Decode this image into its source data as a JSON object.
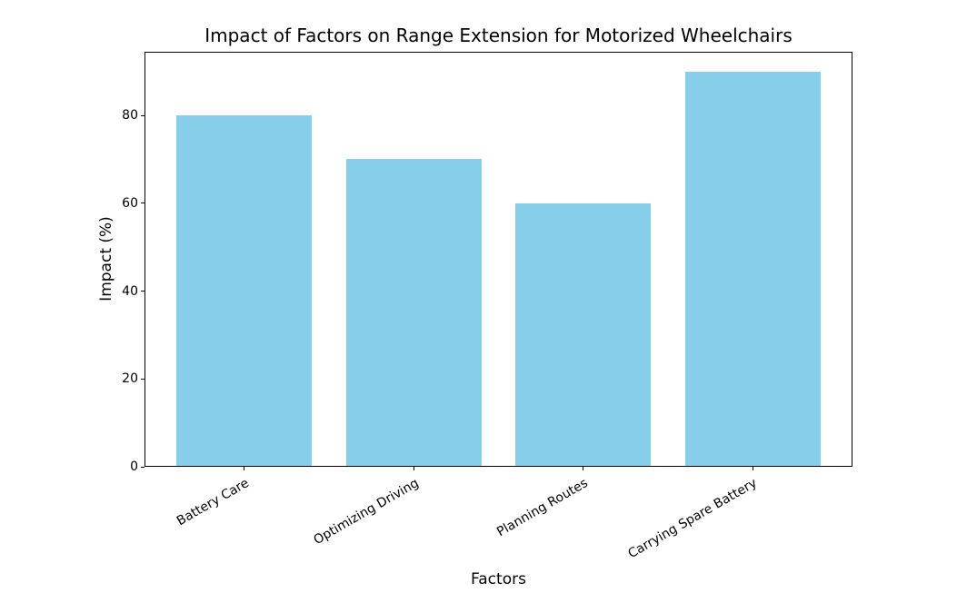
{
  "chart_data": {
    "type": "bar",
    "title": "Impact of Factors on Range Extension for Motorized Wheelchairs",
    "categories": [
      "Battery Care",
      "Optimizing Driving",
      "Planning Routes",
      "Carrying Spare Battery"
    ],
    "values": [
      80,
      70,
      60,
      90
    ],
    "xlabel": "Factors",
    "ylabel": "Impact (%)",
    "ylim": [
      0,
      94.5
    ],
    "yticks": [
      0,
      20,
      40,
      60,
      80
    ],
    "bar_color": "#87CEEB",
    "background_color": "#ffffff",
    "spine_color": "#000000",
    "bar_width_fraction": 0.8,
    "x_tick_rotation_deg": 30,
    "grid": false,
    "legend": "none"
  }
}
